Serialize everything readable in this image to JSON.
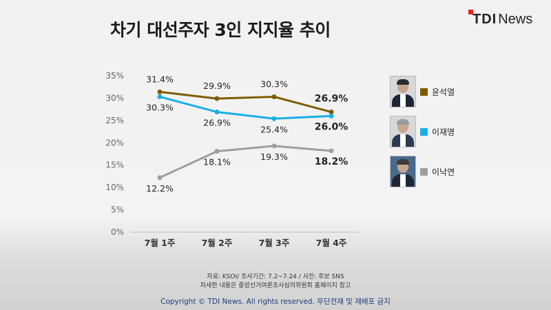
{
  "title": "차기 대선주자 3인 지지율 추이",
  "logo": {
    "tdi": "TDI",
    "news": "News"
  },
  "chart_data": {
    "type": "line",
    "title": "차기 대선주자 3인 지지율 추이",
    "categories": [
      "7월 1주",
      "7월 2주",
      "7월 3주",
      "7월 4주"
    ],
    "y_ticks": [
      "0%",
      "5%",
      "10%",
      "15%",
      "20%",
      "25%",
      "30%",
      "35%"
    ],
    "ylim": [
      0,
      35
    ],
    "grid": false,
    "legend_position": "right",
    "series": [
      {
        "name": "윤석열",
        "color": "#7e5c00",
        "values": [
          31.4,
          29.9,
          30.3,
          26.9
        ],
        "labels": [
          "31.4%",
          "29.9%",
          "30.3%",
          "26.9%"
        ]
      },
      {
        "name": "이재명",
        "color": "#1aaee8",
        "values": [
          30.3,
          26.9,
          25.4,
          26.0
        ],
        "labels": [
          "30.3%",
          "26.9%",
          "25.4%",
          "26.0%"
        ]
      },
      {
        "name": "이낙연",
        "color": "#9e9e9e",
        "values": [
          12.2,
          18.1,
          19.3,
          18.2
        ],
        "labels": [
          "12.2%",
          "18.1%",
          "19.3%",
          "18.2%"
        ]
      }
    ]
  },
  "legend": [
    {
      "name": "윤석열",
      "color": "#7e5c00",
      "photo": "portrait-photo"
    },
    {
      "name": "이재명",
      "color": "#1aaee8",
      "photo": "portrait-photo"
    },
    {
      "name": "이낙연",
      "color": "#9e9e9e",
      "photo": "portrait-photo"
    }
  ],
  "footer": {
    "source": "자료: KSOI/ 조사기간: 7.2~7.24 / 사진: 후보 SNS",
    "note": "자세한 내용은 중앙선거여론조사심의위원회 홈페이지 참고",
    "copyright": "Copyright © TDI News. All rights reserved. 무단전재 및 재배포 금지"
  }
}
